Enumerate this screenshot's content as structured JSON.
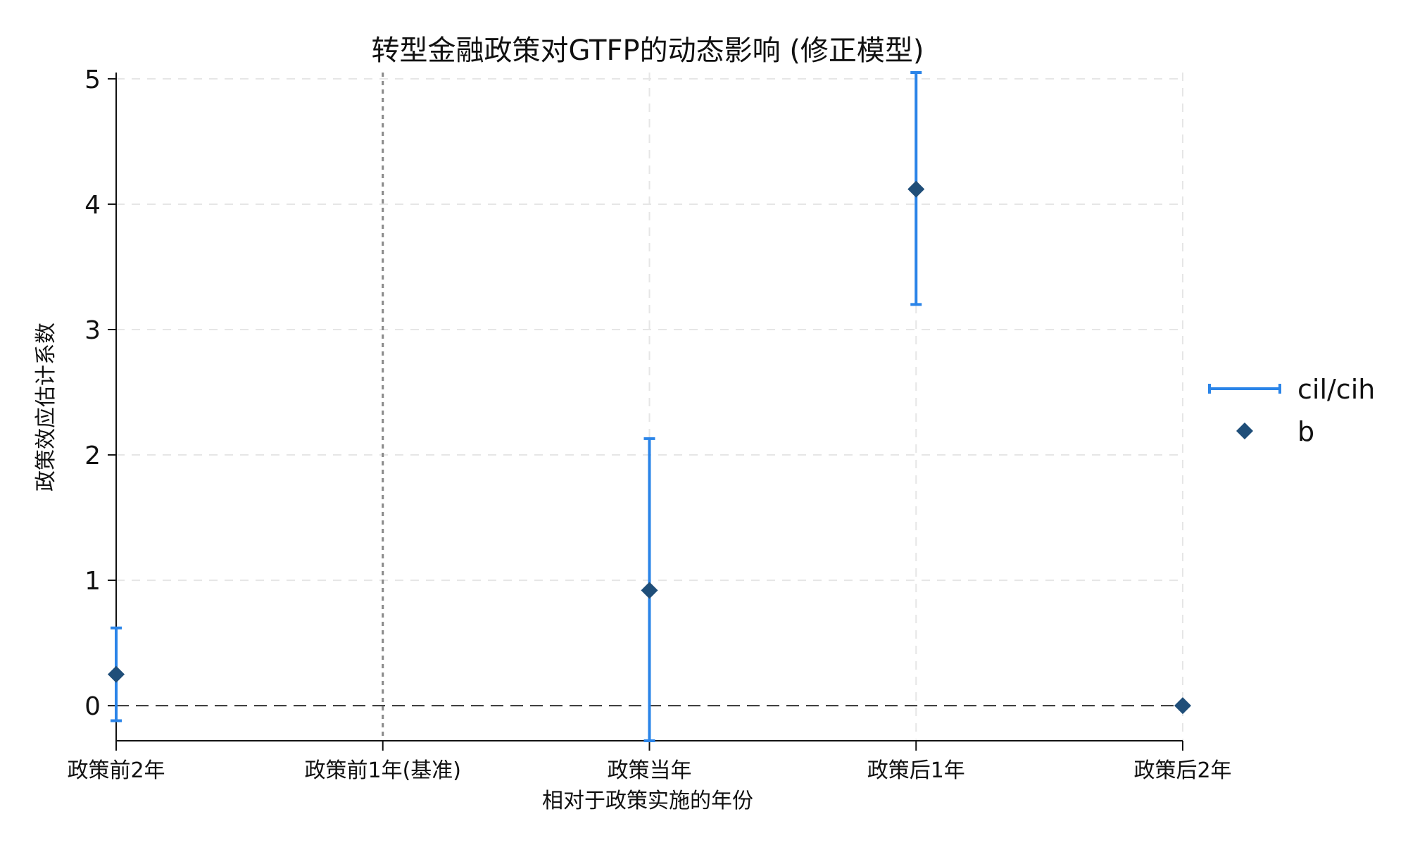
{
  "chart_data": {
    "type": "scatter",
    "title": "转型金融政策对GTFP的动态影响 (修正模型)",
    "xlabel": "相对于政策实施的年份",
    "ylabel": "政策效应估计系数",
    "categories": [
      "政策前2年",
      "政策前1年(基准)",
      "政策当年",
      "政策后1年",
      "政策后2年"
    ],
    "ylim": [
      -0.28,
      5.05
    ],
    "yticks": [
      0,
      1,
      2,
      3,
      4,
      5
    ],
    "grid": true,
    "legend_placement": "right",
    "reference_lines": {
      "zero_line": 0,
      "baseline_category": "政策前1年(基准)"
    },
    "series": [
      {
        "name": "cil/cih",
        "kind": "errorbar",
        "color": "#2a84e8",
        "points": [
          {
            "category": "政策前2年",
            "low": -0.12,
            "high": 0.62
          },
          {
            "category": "政策当年",
            "low": -0.28,
            "high": 2.13
          },
          {
            "category": "政策后1年",
            "low": 3.2,
            "high": 5.05
          }
        ]
      },
      {
        "name": "b",
        "kind": "point",
        "marker": "diamond",
        "color": "#1f4e79",
        "points": [
          {
            "category": "政策前2年",
            "value": 0.25
          },
          {
            "category": "政策当年",
            "value": 0.92
          },
          {
            "category": "政策后1年",
            "value": 4.12
          },
          {
            "category": "政策后2年",
            "value": 0.0
          }
        ]
      }
    ],
    "colors": {
      "axis": "#111111",
      "grid": "#e6e6e6",
      "zero_line": "#333333",
      "baseline_line": "#888888"
    }
  }
}
